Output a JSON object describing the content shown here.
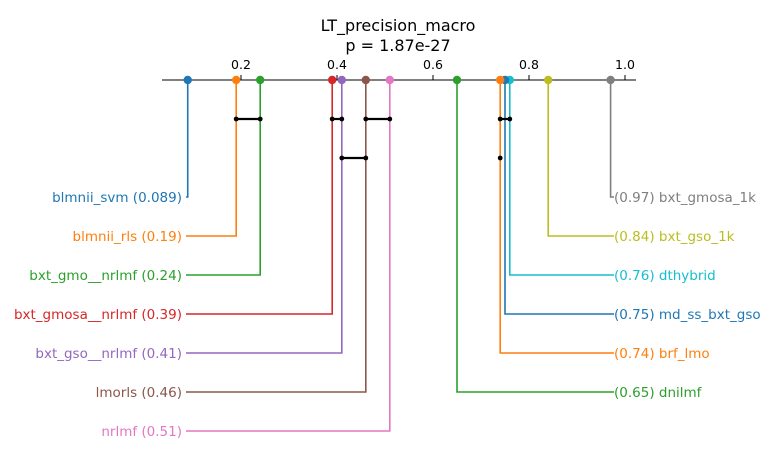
{
  "chart_data": {
    "type": "critical-difference",
    "title": "LT_precision_macro",
    "subtitle": "p = 1.87e-27",
    "axis": {
      "range": [
        0.0,
        1.0
      ],
      "ticks": [
        0.2,
        0.4,
        0.6,
        0.8,
        1.0
      ],
      "tick_labels": [
        "0.2",
        "0.4",
        "0.6",
        "0.8",
        "1.0"
      ]
    },
    "left_methods": [
      {
        "name": "blmnii_svm",
        "value": 0.089,
        "label": "blmnii_svm (0.089)",
        "color": "#1f77b4"
      },
      {
        "name": "blmnii_rls",
        "value": 0.19,
        "label": "blmnii_rls (0.19)",
        "color": "#ff7f0e"
      },
      {
        "name": "bxt_gmo__nrlmf",
        "value": 0.24,
        "label": "bxt_gmo__nrlmf (0.24)",
        "color": "#2ca02c"
      },
      {
        "name": "bxt_gmosa__nrlmf",
        "value": 0.39,
        "label": "bxt_gmosa__nrlmf (0.39)",
        "color": "#d62728"
      },
      {
        "name": "bxt_gso__nrlmf",
        "value": 0.41,
        "label": "bxt_gso__nrlmf (0.41)",
        "color": "#9467bd"
      },
      {
        "name": "lmorls",
        "value": 0.46,
        "label": "lmorls (0.46)",
        "color": "#8c564b"
      },
      {
        "name": "nrlmf",
        "value": 0.51,
        "label": "nrlmf (0.51)",
        "color": "#e377c2"
      }
    ],
    "right_methods": [
      {
        "name": "bxt_gmosa_1k",
        "value": 0.97,
        "label": "(0.97) bxt_gmosa_1k",
        "color": "#7f7f7f"
      },
      {
        "name": "bxt_gso_1k",
        "value": 0.84,
        "label": "(0.84) bxt_gso_1k",
        "color": "#bcbd22"
      },
      {
        "name": "dthybrid",
        "value": 0.76,
        "label": "(0.76) dthybrid",
        "color": "#17becf"
      },
      {
        "name": "md_ss_bxt_gso",
        "value": 0.75,
        "label": "(0.75) md_ss_bxt_gso",
        "color": "#1f77b4"
      },
      {
        "name": "brf_lmo",
        "value": 0.74,
        "label": "(0.74) brf_lmo",
        "color": "#ff7f0e"
      },
      {
        "name": "dnilmf",
        "value": 0.65,
        "label": "(0.65) dnilmf",
        "color": "#2ca02c"
      }
    ],
    "cliques": [
      {
        "from": 0.19,
        "to": 0.24
      },
      {
        "from": 0.39,
        "to": 0.41
      },
      {
        "from": 0.46,
        "to": 0.51
      },
      {
        "from": 0.74,
        "to": 0.76
      },
      {
        "from": 0.41,
        "to": 0.46
      },
      {
        "from": 0.74,
        "to": 0.74
      }
    ]
  }
}
